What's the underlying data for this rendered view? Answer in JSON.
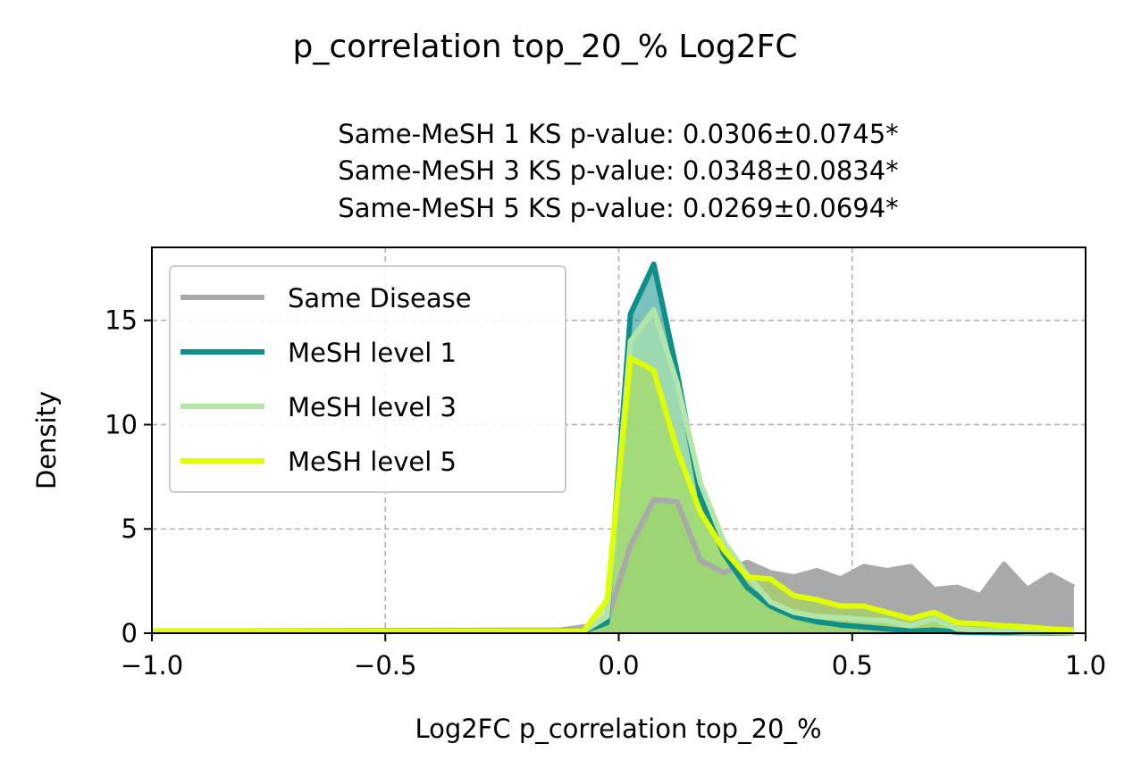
{
  "figure": {
    "suptitle": "p_correlation top_20_% Log2FC",
    "subtitle_lines": [
      "Same-MeSH 1 KS p-value: 0.0306±0.0745*",
      "Same-MeSH 3 KS p-value: 0.0348±0.0834*",
      "Same-MeSH 5 KS p-value: 0.0269±0.0694*"
    ]
  },
  "chart_data": {
    "type": "area",
    "xlabel": "Log2FC p_correlation top_20_%",
    "ylabel": "Density",
    "xlim": [
      -1.0,
      1.0
    ],
    "ylim": [
      0,
      18.5
    ],
    "xticks": [
      -1.0,
      -0.5,
      0.0,
      0.5,
      1.0
    ],
    "xtick_labels": [
      "−1.0",
      "−0.5",
      "0.0",
      "0.5",
      "1.0"
    ],
    "yticks": [
      0,
      5,
      10,
      15
    ],
    "ytick_labels": [
      "0",
      "5",
      "10",
      "15"
    ],
    "grid": true,
    "legend_position": "upper-left",
    "series": [
      {
        "name": "Same Disease",
        "color": "#a9a9a9",
        "fill": "#a9a9a9",
        "fill_opacity": 1.0,
        "x": [
          -1.0,
          -0.125,
          -0.075,
          -0.025,
          0.025,
          0.075,
          0.125,
          0.175,
          0.225,
          0.275,
          0.325,
          0.375,
          0.425,
          0.475,
          0.525,
          0.575,
          0.625,
          0.675,
          0.725,
          0.775,
          0.825,
          0.875,
          0.925,
          0.975
        ],
        "y": [
          0.1,
          0.15,
          0.3,
          0.6,
          4.2,
          6.4,
          6.3,
          3.5,
          2.9,
          3.4,
          2.9,
          2.7,
          3.0,
          2.6,
          3.2,
          3.0,
          3.2,
          2.1,
          2.2,
          1.8,
          3.3,
          2.1,
          2.8,
          2.2
        ]
      },
      {
        "name": "MeSH level 1",
        "color": "#0e8f8a",
        "fill": "#0e8f8a",
        "fill_opacity": 0.55,
        "x": [
          -1.0,
          -0.075,
          -0.025,
          0.025,
          0.075,
          0.125,
          0.175,
          0.225,
          0.275,
          0.325,
          0.375,
          0.425,
          0.475,
          0.525,
          0.575,
          0.625,
          0.675,
          0.725,
          0.775,
          0.825,
          0.875,
          0.925,
          0.975
        ],
        "y": [
          0.1,
          0.1,
          0.5,
          15.3,
          17.7,
          12.5,
          6.5,
          3.8,
          2.2,
          1.3,
          0.8,
          0.55,
          0.4,
          0.3,
          0.2,
          0.1,
          0.15,
          0.05,
          0.03,
          0.02,
          0.02,
          0.01,
          0.01
        ]
      },
      {
        "name": "MeSH level 3",
        "color": "#b2e6a8",
        "fill": "#b2e6a8",
        "fill_opacity": 0.6,
        "x": [
          -1.0,
          -0.075,
          -0.025,
          0.025,
          0.075,
          0.125,
          0.175,
          0.225,
          0.275,
          0.325,
          0.375,
          0.425,
          0.475,
          0.525,
          0.575,
          0.625,
          0.675,
          0.725,
          0.775,
          0.825,
          0.875,
          0.925,
          0.975
        ],
        "y": [
          0.1,
          0.1,
          0.8,
          14.0,
          15.5,
          12.0,
          7.2,
          4.4,
          2.8,
          1.5,
          1.0,
          0.8,
          0.75,
          0.65,
          0.6,
          0.35,
          0.7,
          0.2,
          0.15,
          0.1,
          0.05,
          0.05,
          0.02
        ]
      },
      {
        "name": "MeSH level 5",
        "color": "#e0ff00",
        "fill": "#aadd55",
        "fill_opacity": 0.6,
        "x": [
          -1.0,
          -0.075,
          -0.025,
          0.025,
          0.075,
          0.125,
          0.175,
          0.225,
          0.275,
          0.325,
          0.375,
          0.425,
          0.475,
          0.525,
          0.575,
          0.625,
          0.675,
          0.725,
          0.775,
          0.825,
          0.875,
          0.925,
          0.975
        ],
        "y": [
          0.1,
          0.1,
          1.6,
          13.2,
          12.6,
          8.8,
          5.8,
          4.0,
          2.7,
          2.6,
          1.8,
          1.6,
          1.3,
          1.3,
          1.0,
          0.7,
          1.0,
          0.5,
          0.45,
          0.35,
          0.3,
          0.2,
          0.15
        ]
      }
    ]
  }
}
